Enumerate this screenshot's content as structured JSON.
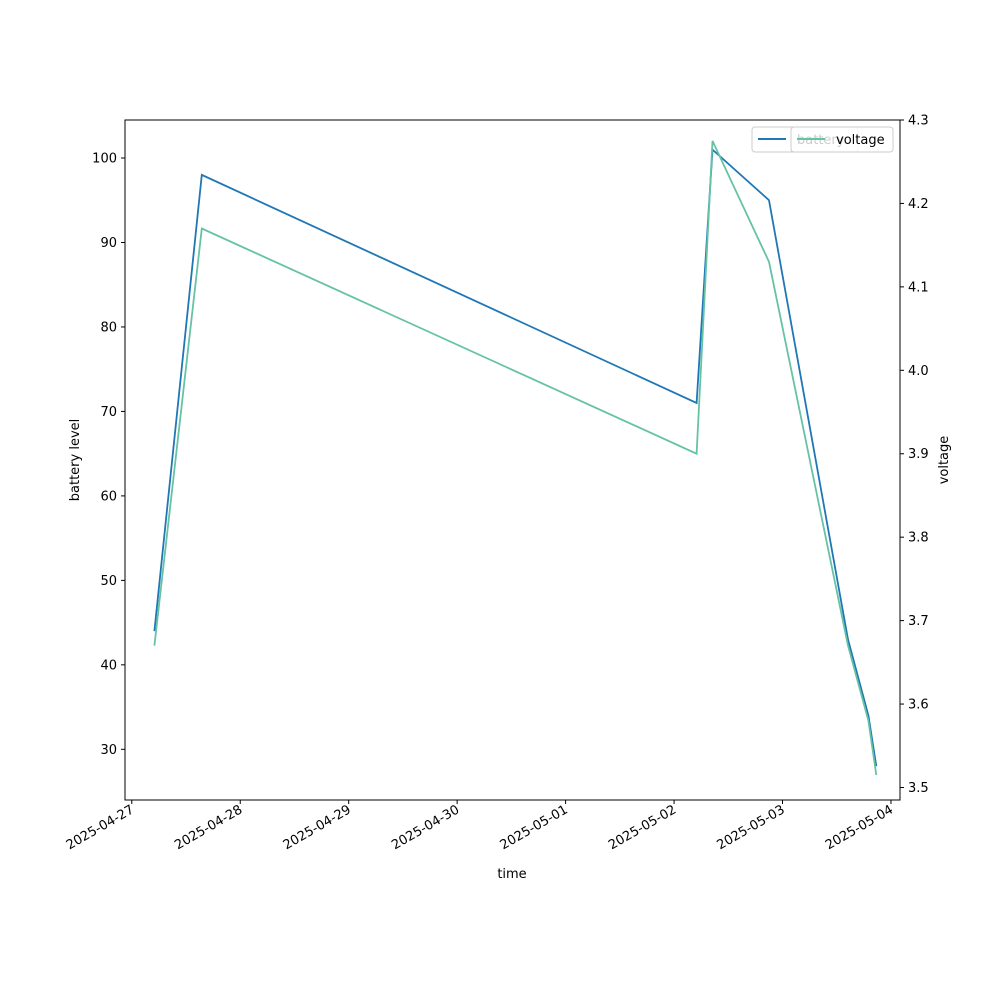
{
  "chart_data": {
    "type": "line",
    "title": "",
    "xlabel": "time",
    "ylabel": "battery level",
    "y2label": "voltage",
    "x_ticks": [
      "2025-04-27",
      "2025-04-28",
      "2025-04-29",
      "2025-04-30",
      "2025-05-01",
      "2025-05-02",
      "2025-05-03",
      "2025-05-04"
    ],
    "xlim": [
      "2025-04-26 22:30",
      "2025-05-04 02:00"
    ],
    "ylim": [
      24,
      104.5
    ],
    "y_ticks": [
      30,
      40,
      50,
      60,
      70,
      80,
      90,
      100
    ],
    "y2lim": [
      3.485,
      4.3
    ],
    "y2_ticks": [
      "3.5",
      "3.6",
      "3.7",
      "3.8",
      "3.9",
      "4.0",
      "4.1",
      "4.2",
      "4.3"
    ],
    "grid": false,
    "legend_position": "top-right",
    "series": [
      {
        "name": "battery",
        "axis": "left",
        "color": "#1f77b4",
        "points": [
          {
            "x": "2025-04-27 05:00",
            "y": 44
          },
          {
            "x": "2025-04-27 15:30",
            "y": 98
          },
          {
            "x": "2025-05-02 05:00",
            "y": 71
          },
          {
            "x": "2025-05-02 08:30",
            "y": 101
          },
          {
            "x": "2025-05-02 21:00",
            "y": 95
          },
          {
            "x": "2025-05-03 14:30",
            "y": 43
          },
          {
            "x": "2025-05-03 19:00",
            "y": 34
          },
          {
            "x": "2025-05-03 20:45",
            "y": 28
          }
        ]
      },
      {
        "name": "voltage",
        "axis": "right",
        "color": "#66c2a5",
        "points": [
          {
            "x": "2025-04-27 05:00",
            "y": 3.67
          },
          {
            "x": "2025-04-27 15:30",
            "y": 4.17
          },
          {
            "x": "2025-05-02 05:00",
            "y": 3.9
          },
          {
            "x": "2025-05-02 08:30",
            "y": 4.275
          },
          {
            "x": "2025-05-02 21:00",
            "y": 4.13
          },
          {
            "x": "2025-05-03 14:30",
            "y": 3.67
          },
          {
            "x": "2025-05-03 19:00",
            "y": 3.58
          },
          {
            "x": "2025-05-03 20:45",
            "y": 3.515
          }
        ]
      }
    ]
  }
}
